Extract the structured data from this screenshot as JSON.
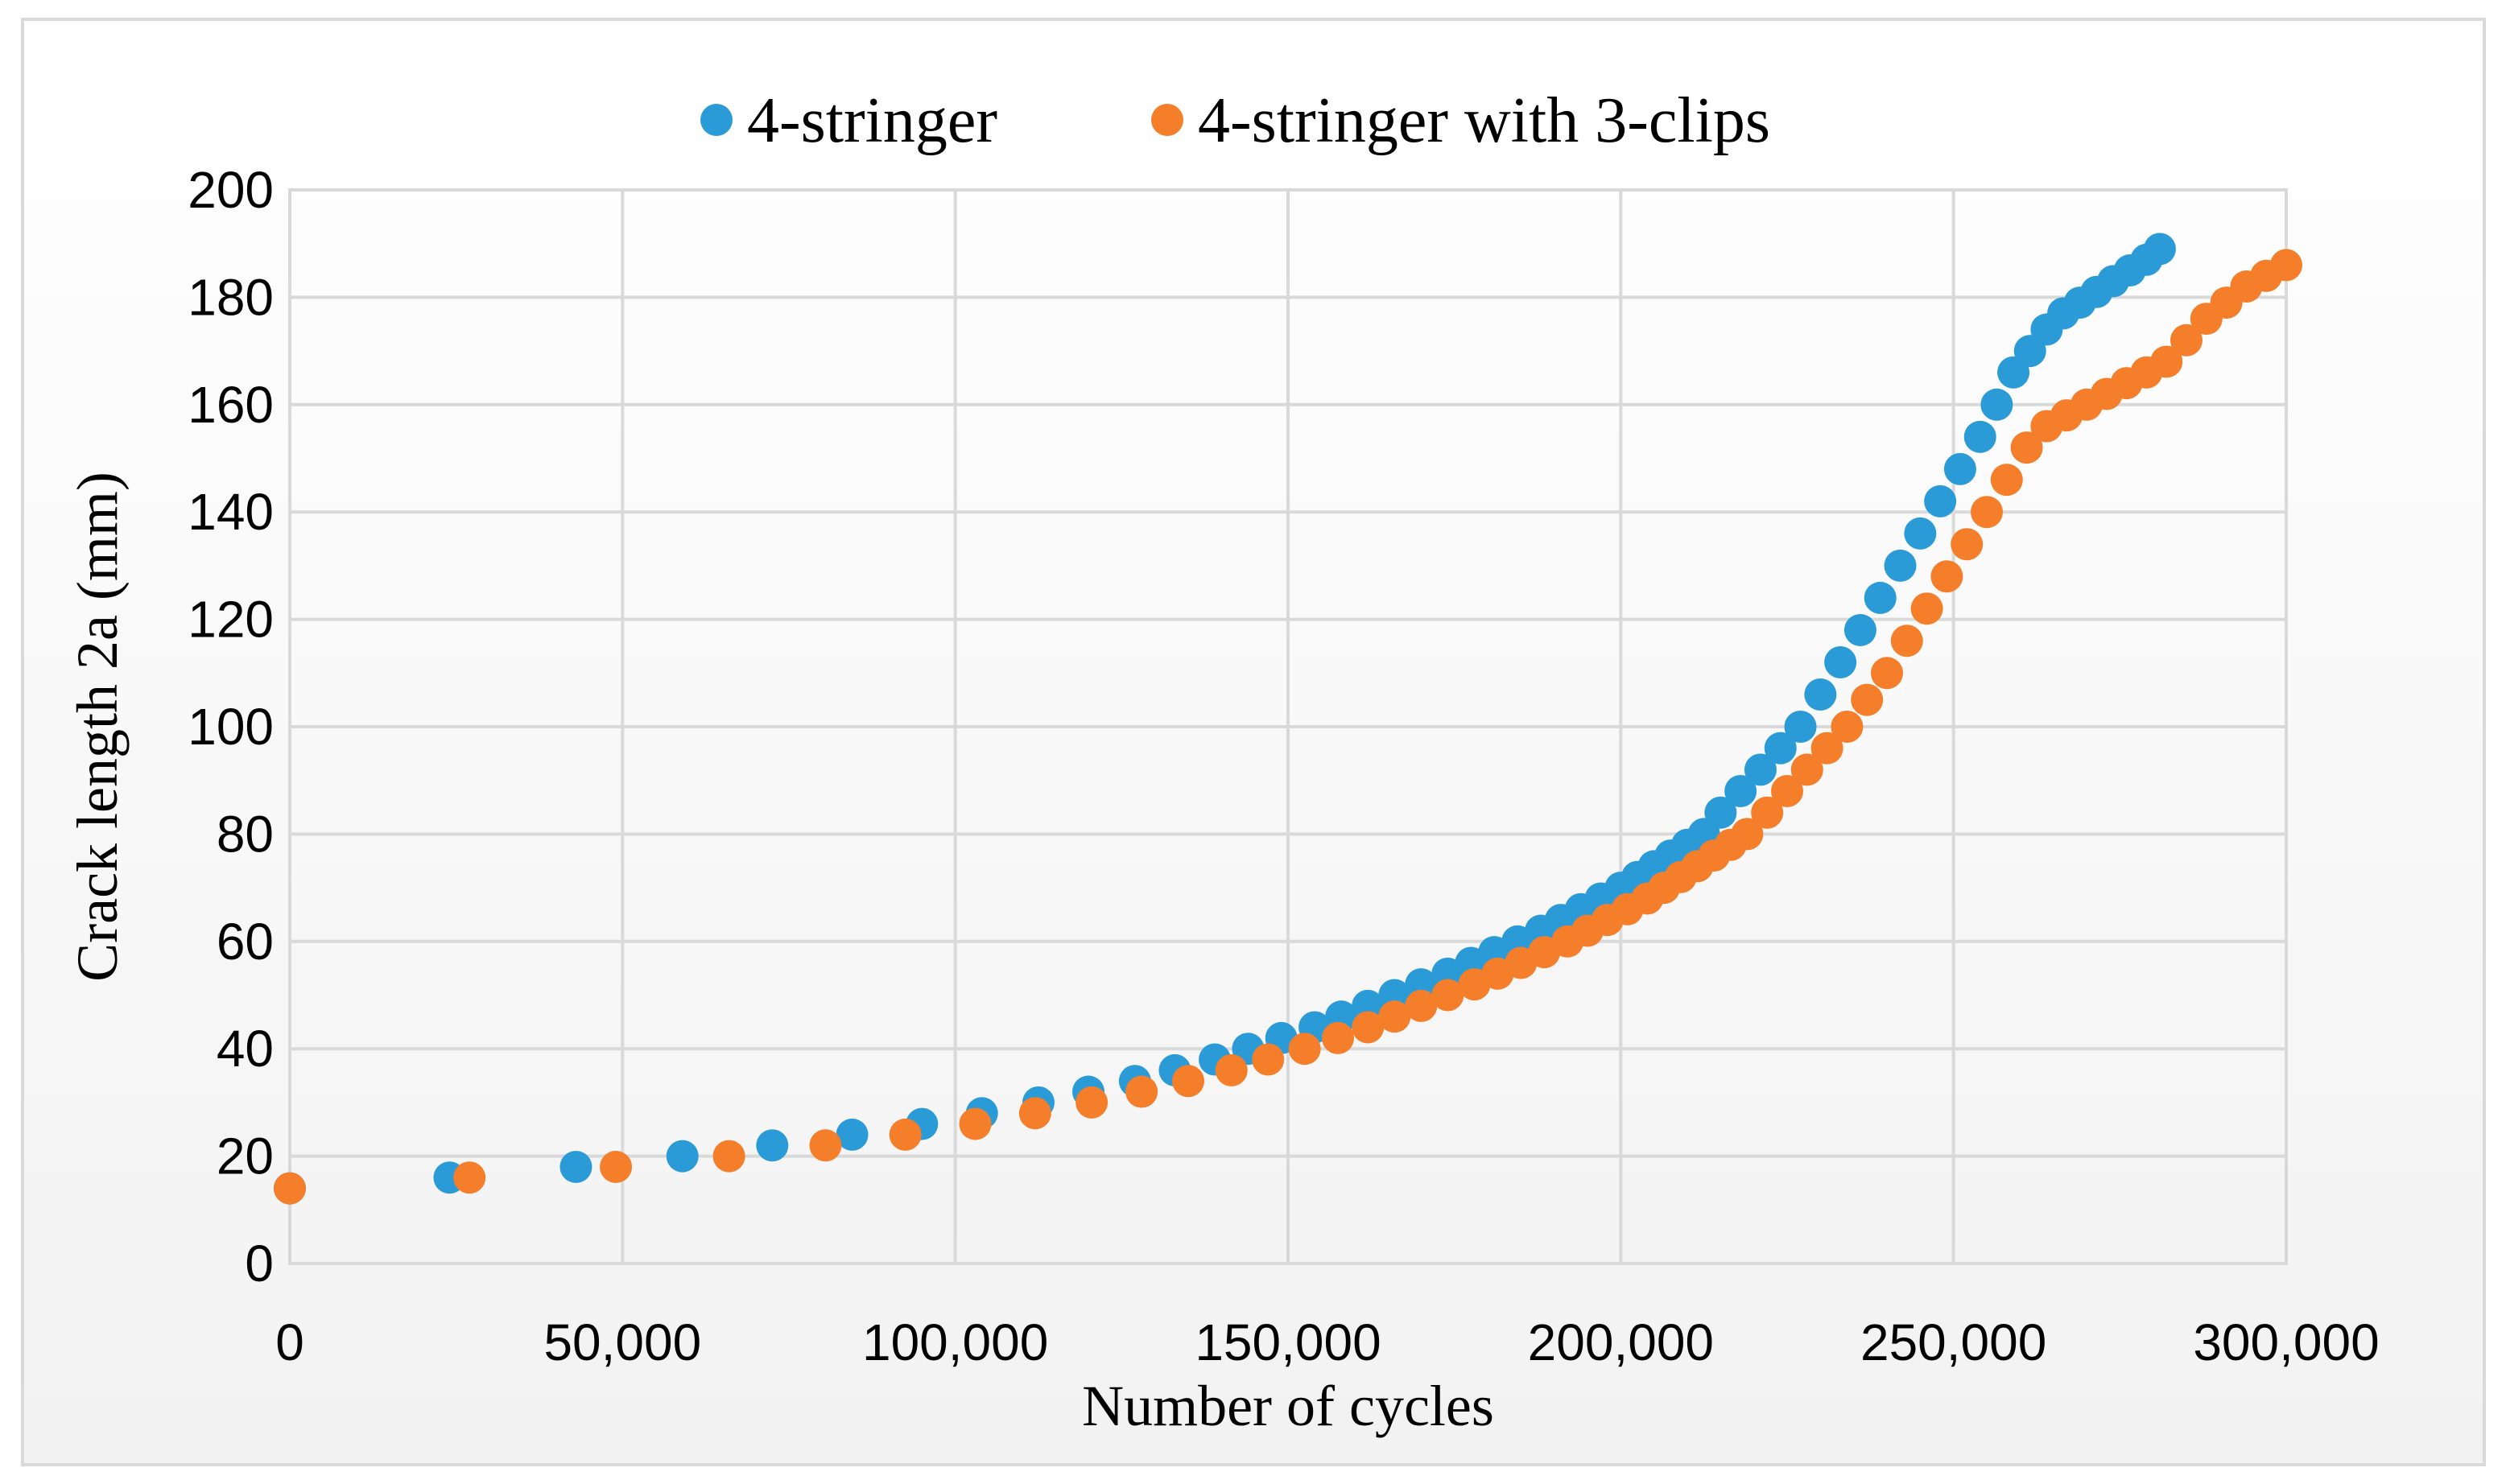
{
  "chart_data": {
    "type": "scatter",
    "title": "",
    "xlabel": "Number of cycles",
    "ylabel": "Crack length 2a (mm)",
    "xlim": [
      0,
      300000
    ],
    "ylim": [
      0,
      200
    ],
    "x_ticks": [
      "0",
      "50,000",
      "100,000",
      "150,000",
      "200,000",
      "250,000",
      "300,000"
    ],
    "y_ticks": [
      "0",
      "20",
      "40",
      "60",
      "80",
      "100",
      "120",
      "140",
      "160",
      "180",
      "200"
    ],
    "grid": true,
    "legend_position": "top",
    "series": [
      {
        "name": "4-stringer",
        "color": "#2b9bd8",
        "points": [
          [
            0,
            14
          ],
          [
            24000,
            16
          ],
          [
            43000,
            18
          ],
          [
            59000,
            20
          ],
          [
            72500,
            22
          ],
          [
            84500,
            24
          ],
          [
            95000,
            26
          ],
          [
            104000,
            28
          ],
          [
            112500,
            30
          ],
          [
            120000,
            32
          ],
          [
            127000,
            34
          ],
          [
            133000,
            36
          ],
          [
            139000,
            38
          ],
          [
            144000,
            40
          ],
          [
            149000,
            42
          ],
          [
            154000,
            44
          ],
          [
            158000,
            46
          ],
          [
            162000,
            48
          ],
          [
            166000,
            50
          ],
          [
            170000,
            52
          ],
          [
            174000,
            54
          ],
          [
            177500,
            56
          ],
          [
            181000,
            58
          ],
          [
            184500,
            60
          ],
          [
            188000,
            62
          ],
          [
            191000,
            64
          ],
          [
            194000,
            66
          ],
          [
            197000,
            68
          ],
          [
            200000,
            70
          ],
          [
            202500,
            72
          ],
          [
            205000,
            74
          ],
          [
            207500,
            76
          ],
          [
            210000,
            78
          ],
          [
            212500,
            80
          ],
          [
            215000,
            84
          ],
          [
            218000,
            88
          ],
          [
            221000,
            92
          ],
          [
            224000,
            96
          ],
          [
            227000,
            100
          ],
          [
            230000,
            106
          ],
          [
            233000,
            112
          ],
          [
            236000,
            118
          ],
          [
            239000,
            124
          ],
          [
            242000,
            130
          ],
          [
            245000,
            136
          ],
          [
            248000,
            142
          ],
          [
            251000,
            148
          ],
          [
            254000,
            154
          ],
          [
            256500,
            160
          ],
          [
            259000,
            166
          ],
          [
            261500,
            170
          ],
          [
            264000,
            174
          ],
          [
            266500,
            177
          ],
          [
            269000,
            179
          ],
          [
            271500,
            181
          ],
          [
            274000,
            183
          ],
          [
            276500,
            185
          ],
          [
            279000,
            187
          ],
          [
            281000,
            189
          ]
        ]
      },
      {
        "name": "4-stringer with 3-clips",
        "color": "#f57e2a",
        "points": [
          [
            0,
            14
          ],
          [
            27000,
            16
          ],
          [
            49000,
            18
          ],
          [
            66000,
            20
          ],
          [
            80500,
            22
          ],
          [
            92500,
            24
          ],
          [
            103000,
            26
          ],
          [
            112000,
            28
          ],
          [
            120500,
            30
          ],
          [
            128000,
            32
          ],
          [
            135000,
            34
          ],
          [
            141500,
            36
          ],
          [
            147000,
            38
          ],
          [
            152500,
            40
          ],
          [
            157500,
            42
          ],
          [
            162000,
            44
          ],
          [
            166000,
            46
          ],
          [
            170000,
            48
          ],
          [
            174000,
            50
          ],
          [
            178000,
            52
          ],
          [
            181500,
            54
          ],
          [
            185000,
            56
          ],
          [
            188500,
            58
          ],
          [
            192000,
            60
          ],
          [
            195000,
            62
          ],
          [
            198000,
            64
          ],
          [
            201000,
            66
          ],
          [
            204000,
            68
          ],
          [
            206500,
            70
          ],
          [
            209000,
            72
          ],
          [
            211500,
            74
          ],
          [
            214000,
            76
          ],
          [
            216500,
            78
          ],
          [
            219000,
            80
          ],
          [
            222000,
            84
          ],
          [
            225000,
            88
          ],
          [
            228000,
            92
          ],
          [
            231000,
            96
          ],
          [
            234000,
            100
          ],
          [
            237000,
            105
          ],
          [
            240000,
            110
          ],
          [
            243000,
            116
          ],
          [
            246000,
            122
          ],
          [
            249000,
            128
          ],
          [
            252000,
            134
          ],
          [
            255000,
            140
          ],
          [
            258000,
            146
          ],
          [
            261000,
            152
          ],
          [
            264000,
            156
          ],
          [
            267000,
            158
          ],
          [
            270000,
            160
          ],
          [
            273000,
            162
          ],
          [
            276000,
            164
          ],
          [
            279000,
            166
          ],
          [
            282000,
            168
          ],
          [
            285000,
            172
          ],
          [
            288000,
            176
          ],
          [
            291000,
            179
          ],
          [
            294000,
            182
          ],
          [
            297000,
            184
          ],
          [
            300000,
            186
          ]
        ]
      }
    ]
  }
}
